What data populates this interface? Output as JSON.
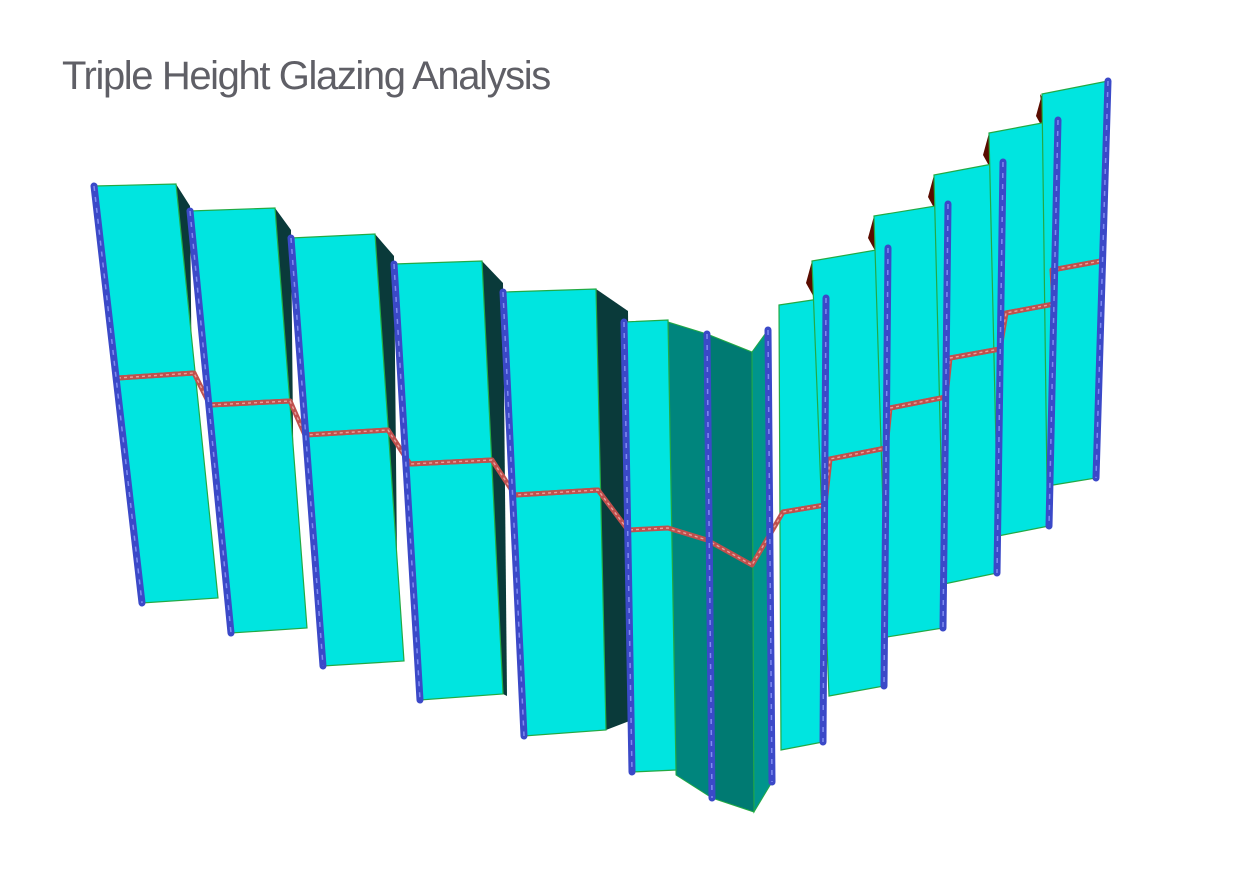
{
  "title": "Triple Height Glazing Analysis",
  "colors": {
    "glass_face": "#00e5e0",
    "glass_shade": "#0a3a3a",
    "corner_glass": "#00857d",
    "mullion": "#3b49c8",
    "mullion_highlight": "#7f8cf0",
    "transom": "#c0504d",
    "edge_line": "#22aa44",
    "roof_shadow": "#5a0c00"
  },
  "icons": {
    "mullion": "vertical-mullion",
    "transom": "horizontal-transom",
    "glass": "glass-panel"
  }
}
